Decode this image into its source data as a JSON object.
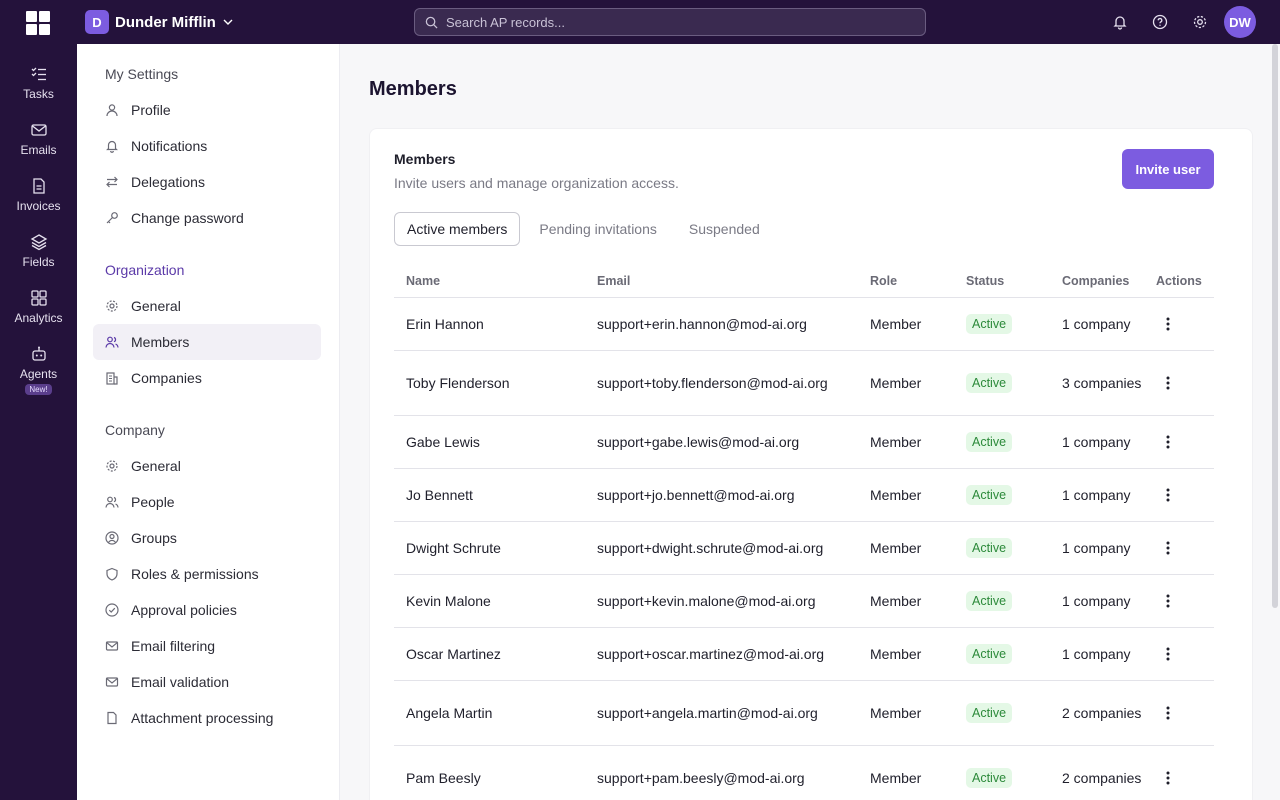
{
  "topbar": {
    "org_initial": "D",
    "org_name": "Dunder Mifflin",
    "search_placeholder": "Search AP records...",
    "avatar_initials": "DW"
  },
  "rail": {
    "items": [
      {
        "label": "Tasks",
        "icon": "tasks-icon"
      },
      {
        "label": "Emails",
        "icon": "mail-icon"
      },
      {
        "label": "Invoices",
        "icon": "file-icon"
      },
      {
        "label": "Fields",
        "icon": "layers-icon"
      },
      {
        "label": "Analytics",
        "icon": "grid-icon"
      },
      {
        "label": "Agents",
        "icon": "robot-icon",
        "badge": "New!"
      }
    ]
  },
  "sidebar": {
    "my_settings_title": "My Settings",
    "my_settings": [
      {
        "label": "Profile",
        "icon": "user-icon"
      },
      {
        "label": "Notifications",
        "icon": "bell-icon"
      },
      {
        "label": "Delegations",
        "icon": "swap-icon"
      },
      {
        "label": "Change password",
        "icon": "key-icon"
      }
    ],
    "organization_title": "Organization",
    "organization": [
      {
        "label": "General",
        "icon": "gear-icon"
      },
      {
        "label": "Members",
        "icon": "users-icon"
      },
      {
        "label": "Companies",
        "icon": "building-icon"
      }
    ],
    "company_title": "Company",
    "company": [
      {
        "label": "General",
        "icon": "gear-icon"
      },
      {
        "label": "People",
        "icon": "users-icon"
      },
      {
        "label": "Groups",
        "icon": "group-icon"
      },
      {
        "label": "Roles & permissions",
        "icon": "shield-icon"
      },
      {
        "label": "Approval policies",
        "icon": "check-circle-icon"
      },
      {
        "label": "Email filtering",
        "icon": "mail-icon"
      },
      {
        "label": "Email validation",
        "icon": "mail-icon"
      },
      {
        "label": "Attachment processing",
        "icon": "file-icon"
      }
    ]
  },
  "main": {
    "page_title": "Members",
    "card_title": "Members",
    "card_subtitle": "Invite users and manage organization access.",
    "invite_label": "Invite user",
    "tabs": [
      "Active members",
      "Pending invitations",
      "Suspended"
    ],
    "columns": [
      "Name",
      "Email",
      "Role",
      "Status",
      "Companies",
      "Actions"
    ],
    "rows": [
      {
        "name": "Erin Hannon",
        "email": "support+erin.hannon@mod-ai.org",
        "role": "Member",
        "status": "Active",
        "companies": "1 company"
      },
      {
        "name": "Toby Flenderson",
        "email": "support+toby.flenderson@mod-ai.org",
        "role": "Member",
        "status": "Active",
        "companies": "3 companies"
      },
      {
        "name": "Gabe Lewis",
        "email": "support+gabe.lewis@mod-ai.org",
        "role": "Member",
        "status": "Active",
        "companies": "1 company"
      },
      {
        "name": "Jo Bennett",
        "email": "support+jo.bennett@mod-ai.org",
        "role": "Member",
        "status": "Active",
        "companies": "1 company"
      },
      {
        "name": "Dwight Schrute",
        "email": "support+dwight.schrute@mod-ai.org",
        "role": "Member",
        "status": "Active",
        "companies": "1 company"
      },
      {
        "name": "Kevin Malone",
        "email": "support+kevin.malone@mod-ai.org",
        "role": "Member",
        "status": "Active",
        "companies": "1 company"
      },
      {
        "name": "Oscar Martinez",
        "email": "support+oscar.martinez@mod-ai.org",
        "role": "Member",
        "status": "Active",
        "companies": "1 company"
      },
      {
        "name": "Angela Martin",
        "email": "support+angela.martin@mod-ai.org",
        "role": "Member",
        "status": "Active",
        "companies": "2 companies"
      },
      {
        "name": "Pam Beesly",
        "email": "support+pam.beesly@mod-ai.org",
        "role": "Member",
        "status": "Active",
        "companies": "2 companies"
      }
    ]
  },
  "colors": {
    "topbar": "#24123b",
    "accent": "#7c5ce0",
    "active_badge_bg": "#e4f8e6",
    "active_badge_text": "#2c8a3a"
  }
}
